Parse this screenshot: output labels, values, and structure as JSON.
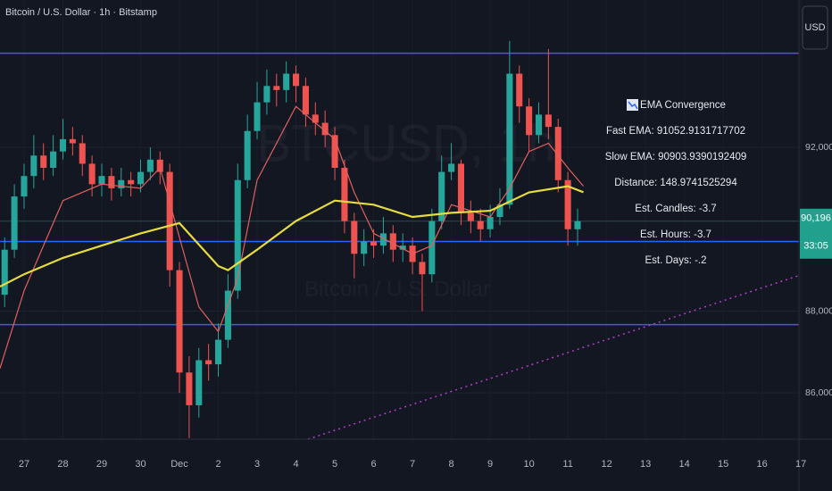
{
  "chart_data": {
    "type": "candlestick",
    "title": "Bitcoin / U.S. Dollar · 1h · Bitstamp",
    "currency": "USD",
    "watermark": [
      "BTCUSD, 1h",
      "Bitcoin / U.S. Dollar"
    ],
    "up_color": "#26a69a",
    "down_color": "#ef5350",
    "grid": true,
    "xlim": [
      -0.62,
      19.95
    ],
    "ylim": [
      84870,
      95600
    ],
    "xticks": [
      {
        "value": 0,
        "label": "27"
      },
      {
        "value": 1,
        "label": "28"
      },
      {
        "value": 2,
        "label": "29"
      },
      {
        "value": 3,
        "label": "30"
      },
      {
        "value": 4,
        "label": "Dec"
      },
      {
        "value": 5,
        "label": "2"
      },
      {
        "value": 6,
        "label": "3"
      },
      {
        "value": 7,
        "label": "4"
      },
      {
        "value": 8,
        "label": "5"
      },
      {
        "value": 9,
        "label": "6"
      },
      {
        "value": 10,
        "label": "7"
      },
      {
        "value": 11,
        "label": "8"
      },
      {
        "value": 12,
        "label": "9"
      },
      {
        "value": 13,
        "label": "10"
      },
      {
        "value": 14,
        "label": "11"
      },
      {
        "value": 15,
        "label": "12"
      },
      {
        "value": 16,
        "label": "13"
      },
      {
        "value": 17,
        "label": "14"
      },
      {
        "value": 18,
        "label": "15"
      },
      {
        "value": 19,
        "label": "16"
      },
      {
        "value": 20,
        "label": "17"
      }
    ],
    "yticks": [
      {
        "value": 92000,
        "label": "92,000"
      },
      {
        "value": 88000,
        "label": "88,000"
      },
      {
        "value": 86000,
        "label": "86,000"
      }
    ],
    "x": [
      -0.5,
      -0.25,
      0,
      0.25,
      0.5,
      0.75,
      1,
      1.25,
      1.5,
      1.75,
      2,
      2.25,
      2.5,
      2.75,
      3,
      3.25,
      3.5,
      3.75,
      4,
      4.25,
      4.5,
      4.75,
      5,
      5.25,
      5.5,
      5.75,
      6,
      6.25,
      6.5,
      6.75,
      7,
      7.25,
      7.5,
      7.75,
      8,
      8.25,
      8.5,
      8.75,
      9,
      9.25,
      9.5,
      9.75,
      10,
      10.25,
      10.5,
      10.75,
      11,
      11.25,
      11.5,
      11.75,
      12,
      12.25,
      12.5,
      12.75,
      13,
      13.25,
      13.5,
      13.75,
      14,
      14.25
    ],
    "open": [
      88400,
      89500,
      90800,
      91300,
      91800,
      91500,
      91900,
      92200,
      92100,
      91600,
      91100,
      91300,
      91000,
      91200,
      91100,
      91400,
      91700,
      91400,
      89000,
      86500,
      85700,
      86800,
      86700,
      87300,
      88500,
      91200,
      92400,
      93100,
      93500,
      93400,
      93800,
      93500,
      92800,
      92600,
      92300,
      91500,
      90200,
      89400,
      89700,
      89600,
      89900,
      89500,
      89600,
      89200,
      88900,
      90200,
      91400,
      91600,
      90400,
      90200,
      90000,
      90300,
      90600,
      93800,
      93000,
      92300,
      92800,
      92500,
      91200,
      90000
    ],
    "high": [
      89800,
      91100,
      91600,
      92300,
      92100,
      92300,
      92700,
      92500,
      92300,
      91800,
      91600,
      91500,
      91500,
      91400,
      91700,
      92000,
      91900,
      91600,
      89200,
      86900,
      87100,
      87200,
      87700,
      88900,
      91600,
      92800,
      93600,
      93900,
      93800,
      94100,
      94000,
      93700,
      93100,
      92900,
      92500,
      91700,
      90400,
      90000,
      90000,
      90300,
      90100,
      89900,
      89800,
      89400,
      90500,
      91800,
      92100,
      91700,
      90700,
      90500,
      90600,
      91000,
      94600,
      94000,
      93200,
      93100,
      94400,
      92700,
      91400,
      90500
    ],
    "low": [
      88100,
      89300,
      90500,
      91000,
      91200,
      91300,
      91700,
      91800,
      91300,
      90800,
      90800,
      90700,
      90800,
      90800,
      90900,
      91200,
      91100,
      88600,
      86000,
      84900,
      85400,
      86300,
      86400,
      87100,
      88300,
      91000,
      92200,
      92800,
      93000,
      93100,
      93100,
      92500,
      92300,
      92000,
      91200,
      89900,
      88800,
      89100,
      89300,
      89400,
      89200,
      89200,
      88900,
      88000,
      88700,
      90000,
      91200,
      90100,
      89900,
      89700,
      89800,
      90100,
      90500,
      92600,
      91900,
      92100,
      92200,
      90900,
      89600,
      89600
    ],
    "close": [
      89500,
      90800,
      91300,
      91800,
      91500,
      91900,
      92200,
      92100,
      91600,
      91100,
      91300,
      91000,
      91200,
      91100,
      91400,
      91700,
      91400,
      89000,
      86500,
      85700,
      86800,
      86700,
      87300,
      88500,
      91200,
      92400,
      93100,
      93500,
      93400,
      93800,
      93500,
      92800,
      92600,
      92300,
      91500,
      90200,
      89400,
      89700,
      89600,
      89900,
      89500,
      89600,
      89200,
      88900,
      90200,
      91400,
      91600,
      90400,
      90200,
      90000,
      90300,
      90600,
      93800,
      93000,
      92300,
      92800,
      92500,
      91200,
      90000,
      90196
    ],
    "slow_ema": {
      "color": "#e6dc3c",
      "x": [
        -0.62,
        0,
        1,
        2,
        3,
        4,
        5,
        5.25,
        6,
        7,
        8,
        9,
        10,
        11,
        12,
        13,
        14,
        14.4
      ],
      "values": [
        88600,
        88900,
        89300,
        89600,
        89900,
        90150,
        89100,
        89000,
        89500,
        90200,
        90700,
        90600,
        90300,
        90400,
        90450,
        90900,
        91050,
        90904
      ]
    },
    "fast_ema": {
      "color": "#e0605e",
      "x": [
        -0.62,
        0,
        1,
        2,
        3,
        3.5,
        4,
        4.5,
        5,
        5.5,
        6,
        7,
        7.5,
        8,
        8.5,
        9,
        10,
        10.5,
        11,
        12,
        12.5,
        13,
        13.5,
        14,
        14.4
      ],
      "values": [
        86600,
        88500,
        90700,
        91100,
        91000,
        91500,
        89800,
        88100,
        87500,
        88800,
        91200,
        93000,
        92600,
        92200,
        90900,
        89900,
        89400,
        89600,
        90600,
        90300,
        91000,
        91900,
        92100,
        91500,
        91053
      ]
    },
    "levels": [
      94300,
      89700,
      87670
    ],
    "level_color": "#2962ff",
    "trendline": {
      "color": "#b43cc8",
      "x": [
        7.31,
        19.95
      ],
      "values": [
        84870,
        88870
      ]
    },
    "last_price": {
      "value": 90196,
      "label": "90,196"
    },
    "countdown": "33:05",
    "annotations": [
      "EMA Convergence",
      "Fast EMA: 91052.9131717702",
      "Slow EMA: 90903.9390192409",
      "Distance: 148.9741525294",
      "Est. Candles: -3.7",
      "Est. Hours: -3.7",
      "Est. Days: -.2"
    ]
  }
}
